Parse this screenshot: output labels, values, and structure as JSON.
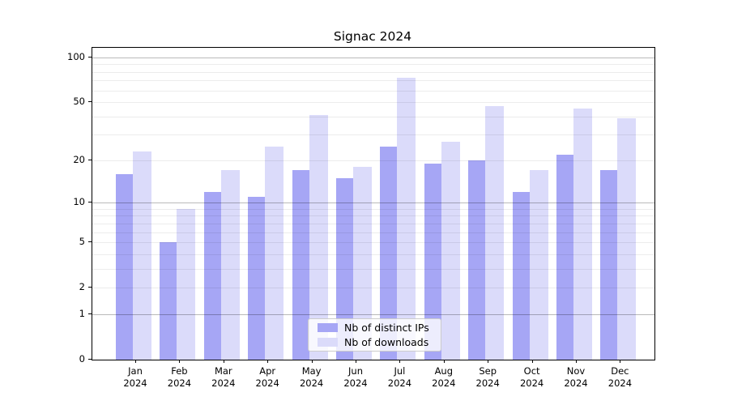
{
  "title": "Signac 2024",
  "chart_data": {
    "type": "bar",
    "title": "Signac 2024",
    "categories": [
      "Jan",
      "Feb",
      "Mar",
      "Apr",
      "May",
      "Jun",
      "Jul",
      "Aug",
      "Sep",
      "Oct",
      "Nov",
      "Dec"
    ],
    "category_year": "2024",
    "series": [
      {
        "name": "Nb of distinct IPs",
        "color": "#a6a6f5",
        "values": [
          16,
          5,
          12,
          11,
          17,
          15,
          25,
          19,
          20,
          12,
          22,
          17
        ]
      },
      {
        "name": "Nb of downloads",
        "color": "#dbdbfa",
        "values": [
          23,
          9,
          17,
          25,
          41,
          18,
          73,
          27,
          47,
          17,
          45,
          39
        ]
      }
    ],
    "yscale": "log1p",
    "ylim": [
      0,
      116
    ],
    "ytick_labels": [
      "0",
      "1",
      "2",
      "5",
      "10",
      "20",
      "50",
      "100"
    ],
    "ytick_label_values": [
      0,
      1,
      2,
      5,
      10,
      20,
      50,
      100
    ],
    "ytick_major_gridlines": [
      1,
      10,
      100
    ],
    "ytick_minor_gridlines": [
      2,
      3,
      4,
      5,
      6,
      7,
      8,
      9,
      20,
      30,
      40,
      50,
      60,
      70,
      80,
      90
    ],
    "grid": true,
    "legend_position": "lower center",
    "xlabel": "",
    "ylabel": ""
  }
}
